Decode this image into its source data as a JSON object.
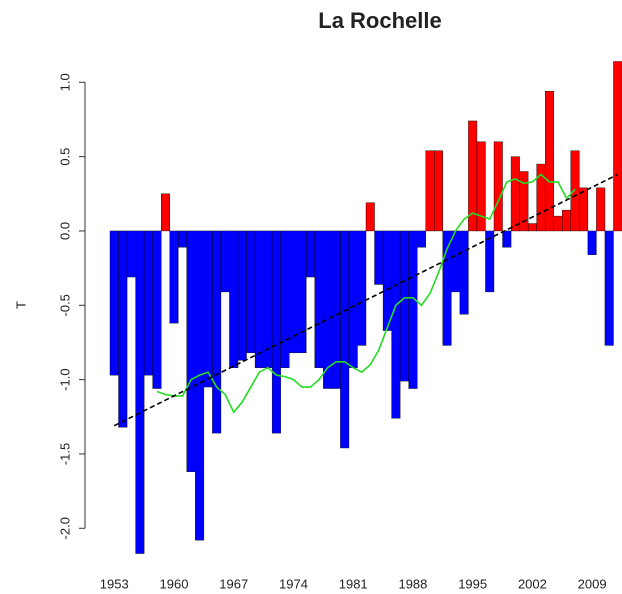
{
  "chart_data": {
    "type": "bar",
    "title": "La Rochelle",
    "y_label": "T",
    "x": [
      1953,
      1954,
      1955,
      1956,
      1957,
      1958,
      1959,
      1960,
      1961,
      1962,
      1963,
      1964,
      1965,
      1966,
      1967,
      1968,
      1969,
      1970,
      1971,
      1972,
      1973,
      1974,
      1975,
      1976,
      1977,
      1978,
      1979,
      1980,
      1981,
      1982,
      1983,
      1984,
      1985,
      1986,
      1987,
      1988,
      1989,
      1990,
      1991,
      1992,
      1993,
      1994,
      1995,
      1996,
      1997,
      1998,
      1999,
      2000,
      2001,
      2002,
      2003,
      2004,
      2005,
      2006,
      2007,
      2008,
      2009,
      2010,
      2011,
      2012
    ],
    "values": [
      -0.97,
      -1.32,
      -0.31,
      -2.17,
      -0.97,
      -1.06,
      0.25,
      -0.62,
      -0.11,
      -1.62,
      -2.08,
      -1.05,
      -1.36,
      -0.41,
      -0.92,
      -0.87,
      -0.82,
      -0.92,
      -0.92,
      -1.36,
      -0.92,
      -0.82,
      -0.82,
      -0.31,
      -0.92,
      -1.06,
      -1.06,
      -1.46,
      -0.92,
      -0.77,
      0.19,
      -0.36,
      -0.67,
      -1.26,
      -1.01,
      -1.06,
      -0.11,
      0.54,
      0.54,
      -0.77,
      -0.41,
      -0.56,
      0.74,
      0.6,
      -0.41,
      0.6,
      -0.11,
      0.5,
      0.4,
      0.05,
      0.45,
      0.94,
      0.1,
      0.14,
      0.54,
      0.29,
      -0.16,
      0.29,
      -0.77,
      1.14
    ],
    "color_positive": "#ff0000",
    "color_negative": "#0000ff",
    "lines": [
      {
        "x": [
          1958,
          1959,
          1960,
          1961,
          1962,
          1963,
          1964,
          1965,
          1966,
          1967,
          1968,
          1969,
          1970,
          1971,
          1972,
          1973,
          1974,
          1975,
          1976,
          1977,
          1978,
          1979,
          1980,
          1981,
          1982,
          1983,
          1984,
          1985,
          1986,
          1987,
          1988,
          1989,
          1990,
          1991,
          1992,
          1993,
          1994,
          1995,
          1996,
          1997,
          1998,
          1999,
          2000,
          2001,
          2002,
          2003,
          2004,
          2005,
          2006,
          2007
        ],
        "values": [
          -1.08,
          -1.1,
          -1.11,
          -1.11,
          -1.0,
          -0.97,
          -0.95,
          -1.05,
          -1.1,
          -1.22,
          -1.15,
          -1.05,
          -0.95,
          -0.92,
          -0.97,
          -0.98,
          -1.0,
          -1.05,
          -1.05,
          -1.0,
          -0.92,
          -0.88,
          -0.88,
          -0.92,
          -0.95,
          -0.9,
          -0.8,
          -0.65,
          -0.5,
          -0.45,
          -0.45,
          -0.5,
          -0.42,
          -0.28,
          -0.12,
          0.0,
          0.08,
          0.12,
          0.1,
          0.08,
          0.2,
          0.33,
          0.35,
          0.32,
          0.33,
          0.38,
          0.33,
          0.33,
          0.22,
          0.28
        ],
        "color": "#22dd22",
        "dashed": false
      },
      {
        "x": [
          1953,
          2012
        ],
        "values": [
          -1.31,
          0.38
        ],
        "color": "#000000",
        "dashed": true
      }
    ],
    "xlim": [
      1952.5,
      2012.5
    ],
    "xticks": [
      1953,
      1960,
      1967,
      1974,
      1981,
      1988,
      1995,
      2002,
      2009
    ],
    "ylim": [
      -2.2,
      1.15
    ],
    "yticks": [
      {
        "value": -2,
        "label": "-2.0"
      },
      {
        "value": -1.5,
        "label": "-1.5"
      },
      {
        "value": -1,
        "label": "-1.0"
      },
      {
        "value": -0.5,
        "label": "-0.5"
      },
      {
        "value": 0,
        "label": "0.0"
      },
      {
        "value": 0.5,
        "label": "0.5"
      },
      {
        "value": 1,
        "label": "1.0"
      }
    ]
  }
}
